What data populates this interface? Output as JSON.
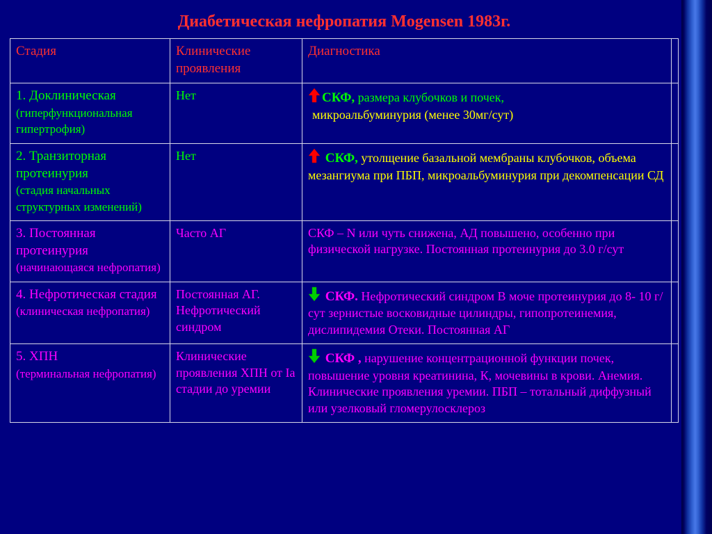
{
  "colors": {
    "background": "#000080",
    "border": "#d8d8e8",
    "title": "#ff3030",
    "header": "#ff3030",
    "green": "#00ff00",
    "yellow": "#ffff00",
    "magenta": "#ff00ff",
    "arrow_red_fill": "#ff0000",
    "arrow_red_stem": "#c00000",
    "arrow_green_fill": "#00d000",
    "arrow_green_stem": "#00a000"
  },
  "title": "Диабетическая  нефропатия Mogensen 1983г.",
  "headers": {
    "stage": "Стадия",
    "clinical": "Клинические проявления",
    "diagnostics": "Диагностика"
  },
  "rows": [
    {
      "stage_main": "1. Доклиническая",
      "stage_sub": "(гиперфункциональная гипертрофия)",
      "stage_color": "green",
      "clinical": "Нет",
      "clinical_color": "green",
      "diag": [
        {
          "arrow": "up-red",
          "lead": "СКФ,",
          "lead_color": "green",
          "rest": " размера клубочков и почек,",
          "rest_color": "green"
        },
        {
          "indent": true,
          "rest": "микроальбуминурия (менее 30мг/сут)",
          "rest_color": "yellow"
        }
      ]
    },
    {
      "stage_main": "2. Транзиторная протеинурия",
      "stage_sub": "(стадия начальных структурных изменений)",
      "stage_color": "green",
      "clinical": "Нет",
      "clinical_color": "green",
      "diag": [
        {
          "arrow": "up-red",
          "lead": " СКФ,",
          "lead_color": "green",
          "rest": " утолщение базальной мембраны клубочков, объема мезангиума при ПБП, микроальбуминурия при декомпенсации СД",
          "rest_color": "yellow"
        }
      ]
    },
    {
      "stage_main": "3. Постоянная протеинурия",
      "stage_sub": "(начинающаяся нефропатия)",
      "stage_color": "magenta",
      "clinical": "Часто АГ",
      "clinical_color": "magenta",
      "diag": [
        {
          "rest": "СКФ – N или чуть снижена, АД повышено, особенно при физической нагрузке. Постоянная протеинурия до 3.0 г/сут",
          "rest_color": "magenta"
        }
      ]
    },
    {
      "stage_main": "4. Нефротическая стадия",
      "stage_sub_inline": " (клиническая нефропатия)",
      "stage_color": "magenta",
      "clinical": "Постоянная АГ. Нефротический синдром",
      "clinical_color": "magenta",
      "diag": [
        {
          "arrow": "down-green",
          "lead": "  СКФ.",
          "lead_color": "magenta",
          "rest": " Нефротический синдром В моче протеинурия до 8- 10 г/сут зернистые восковидные цилиндры, гипопротеинемия, дислипидемия Отеки. Постоянная АГ",
          "rest_color": "magenta"
        }
      ]
    },
    {
      "stage_main": "5. ХПН",
      "stage_sub": "(терминальная нефропатия)",
      "stage_color": "magenta",
      "clinical": "Клинические проявления ХПН от Iа стадии до уремии",
      "clinical_color": "magenta",
      "diag": [
        {
          "arrow": "down-green",
          "lead": " СКФ ,",
          "lead_color": "magenta",
          "rest": " нарушение концентрационной функции почек, повышение уровня креатинина, К, мочевины в крови. Анемия. Клинические проявления уремии. ПБП – тотальный диффузный или узелковый гломерулосклероз",
          "rest_color": "magenta"
        }
      ]
    }
  ]
}
